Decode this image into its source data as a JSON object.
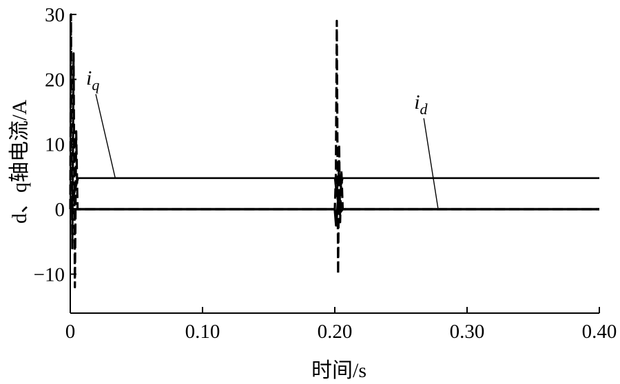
{
  "chart_data": {
    "type": "line",
    "xlabel": "时间/s",
    "ylabel": "d、q轴电流/A",
    "xlim": [
      0,
      0.4
    ],
    "ylim": [
      -16,
      30
    ],
    "x_ticks": [
      0,
      0.1,
      0.2,
      0.3,
      0.4
    ],
    "x_tick_labels": [
      "0",
      "0.10",
      "0.20",
      "0.30",
      "0.40"
    ],
    "y_ticks": [
      -10,
      0,
      10,
      20,
      30
    ],
    "y_tick_labels": [
      "−10",
      "0",
      "10",
      "20",
      "30"
    ],
    "grid": false,
    "legend": "none",
    "series": [
      {
        "line_style": "solid",
        "points": [
          [
            0,
            0
          ],
          [
            0.006,
            4.8
          ],
          [
            0.2,
            4.8
          ],
          [
            0.2015,
            2.0
          ],
          [
            0.203,
            6.0
          ],
          [
            0.2045,
            3.5
          ],
          [
            0.206,
            4.8
          ],
          [
            0.4,
            4.8
          ]
        ]
      },
      {
        "line_style": "solid",
        "points": [
          [
            0,
            0
          ],
          [
            0.006,
            0
          ],
          [
            0.2,
            0
          ],
          [
            0.201,
            -2.5
          ],
          [
            0.2025,
            1.5
          ],
          [
            0.204,
            -0.5
          ],
          [
            0.206,
            0
          ],
          [
            0.4,
            0
          ]
        ]
      },
      {
        "line_style": "dashed",
        "points": [
          [
            0,
            0
          ],
          [
            0.0005,
            30
          ],
          [
            0.0015,
            -6
          ],
          [
            0.0025,
            24
          ],
          [
            0.0035,
            -12
          ],
          [
            0.0045,
            12
          ],
          [
            0.0055,
            0
          ],
          [
            0.2,
            0
          ],
          [
            0.2008,
            5
          ],
          [
            0.2015,
            29
          ],
          [
            0.2025,
            -10
          ],
          [
            0.2033,
            10
          ],
          [
            0.204,
            -2
          ],
          [
            0.205,
            6
          ],
          [
            0.206,
            0
          ],
          [
            0.4,
            0
          ]
        ]
      }
    ],
    "annotations": [
      {
        "label": "i",
        "subscript": "q",
        "text_at": [
          0.012,
          19.2
        ],
        "arrow_to": [
          0.034,
          4.8
        ]
      },
      {
        "label": "i",
        "subscript": "d",
        "text_at": [
          0.26,
          15.5
        ],
        "arrow_to": [
          0.278,
          0.2
        ]
      }
    ]
  }
}
